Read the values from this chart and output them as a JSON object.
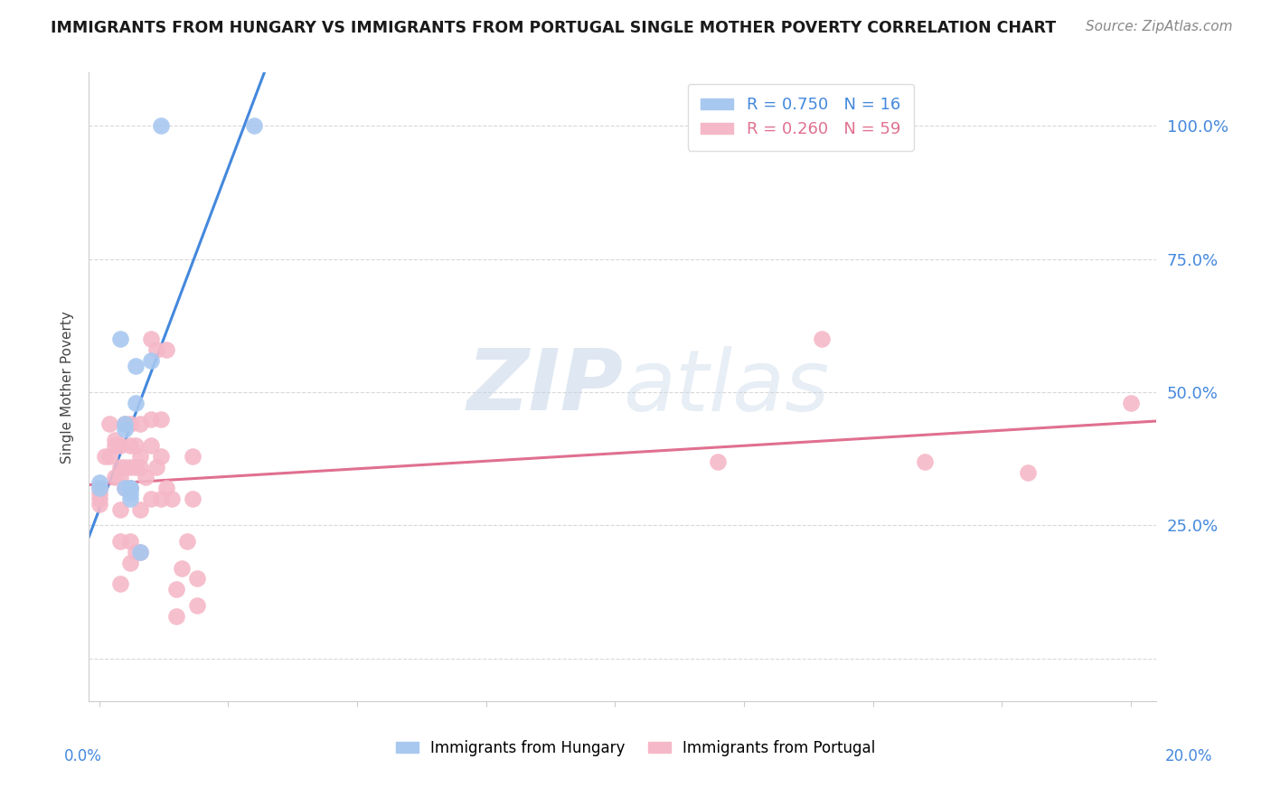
{
  "title": "IMMIGRANTS FROM HUNGARY VS IMMIGRANTS FROM PORTUGAL SINGLE MOTHER POVERTY CORRELATION CHART",
  "source": "Source: ZipAtlas.com",
  "ylabel": "Single Mother Poverty",
  "legend_bottom": [
    "Immigrants from Hungary",
    "Immigrants from Portugal"
  ],
  "hungary_R": 0.75,
  "hungary_N": 16,
  "portugal_R": 0.26,
  "portugal_N": 59,
  "hungary_color": "#a8c8f0",
  "portugal_color": "#f5b8c8",
  "hungary_line_color": "#4488dd",
  "portugal_line_color": "#e07090",
  "watermark": "ZIPatlas",
  "hungary_x": [
    0.0,
    0.0,
    0.004,
    0.005,
    0.005,
    0.005,
    0.006,
    0.006,
    0.006,
    0.006,
    0.007,
    0.007,
    0.008,
    0.01,
    0.012,
    0.03
  ],
  "hungary_y": [
    0.33,
    0.32,
    0.6,
    0.43,
    0.44,
    0.32,
    0.31,
    0.32,
    0.32,
    0.3,
    0.48,
    0.55,
    0.2,
    0.56,
    1.0,
    1.0
  ],
  "portugal_x": [
    0.0,
    0.0,
    0.0,
    0.0,
    0.001,
    0.002,
    0.002,
    0.003,
    0.003,
    0.003,
    0.004,
    0.004,
    0.004,
    0.004,
    0.004,
    0.004,
    0.005,
    0.005,
    0.005,
    0.006,
    0.006,
    0.006,
    0.006,
    0.006,
    0.006,
    0.007,
    0.007,
    0.007,
    0.008,
    0.008,
    0.008,
    0.008,
    0.008,
    0.009,
    0.01,
    0.01,
    0.01,
    0.01,
    0.011,
    0.011,
    0.012,
    0.012,
    0.012,
    0.013,
    0.013,
    0.014,
    0.015,
    0.015,
    0.016,
    0.017,
    0.018,
    0.018,
    0.019,
    0.019,
    0.12,
    0.14,
    0.16,
    0.18,
    0.2
  ],
  "portugal_y": [
    0.32,
    0.31,
    0.3,
    0.29,
    0.38,
    0.44,
    0.38,
    0.41,
    0.4,
    0.34,
    0.4,
    0.36,
    0.34,
    0.28,
    0.22,
    0.14,
    0.44,
    0.36,
    0.32,
    0.44,
    0.4,
    0.36,
    0.32,
    0.22,
    0.18,
    0.4,
    0.36,
    0.2,
    0.44,
    0.38,
    0.36,
    0.28,
    0.2,
    0.34,
    0.6,
    0.45,
    0.4,
    0.3,
    0.58,
    0.36,
    0.45,
    0.38,
    0.3,
    0.58,
    0.32,
    0.3,
    0.08,
    0.13,
    0.17,
    0.22,
    0.38,
    0.3,
    0.1,
    0.15,
    0.37,
    0.6,
    0.37,
    0.35,
    0.48
  ],
  "xlim": [
    -0.002,
    0.205
  ],
  "ylim": [
    -0.08,
    1.1
  ],
  "xticks": [
    0.0,
    0.025,
    0.05,
    0.075,
    0.1,
    0.125,
    0.15,
    0.175,
    0.2
  ],
  "yticks": [
    0.0,
    0.25,
    0.5,
    0.75,
    1.0
  ],
  "right_ytick_labels": [
    "25.0%",
    "50.0%",
    "75.0%",
    "100.0%"
  ],
  "right_ytick_vals": [
    0.25,
    0.5,
    0.75,
    1.0
  ],
  "background_color": "#ffffff",
  "grid_color": "#d8d8d8",
  "title_color": "#1a1a1a",
  "source_color": "#888888",
  "ylabel_color": "#444444",
  "right_tick_color": "#4488dd",
  "bottom_label_color": "#4488dd",
  "spine_color": "#cccccc"
}
